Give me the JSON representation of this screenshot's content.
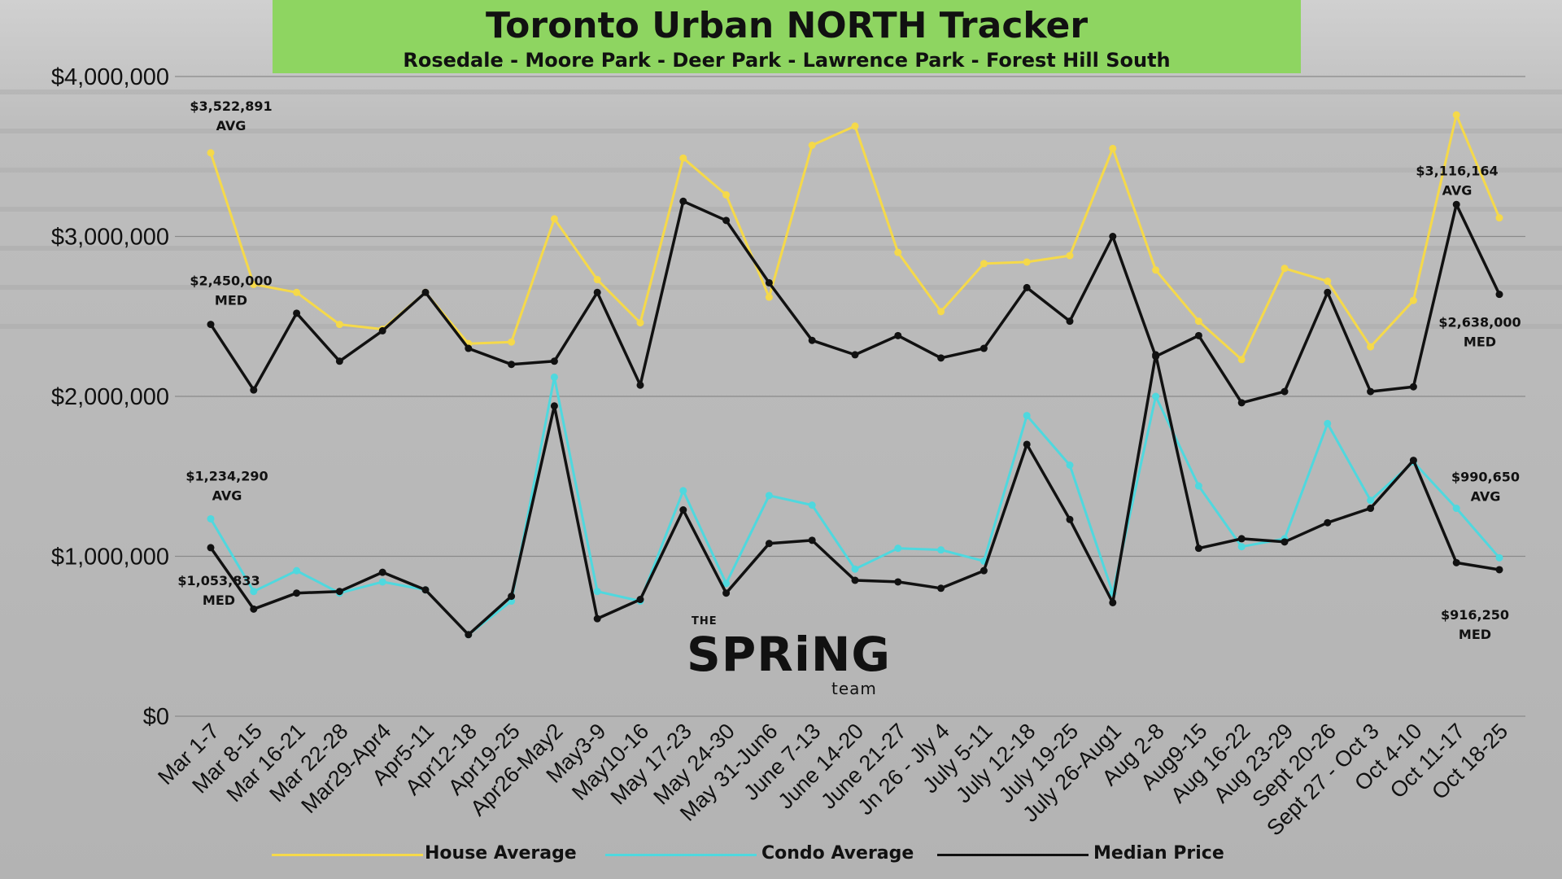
{
  "header": {
    "title": "Toronto Urban NORTH Tracker",
    "subtitle": "Rosedale - Moore Park - Deer Park - Lawrence Park - Forest Hill South"
  },
  "logo": {
    "the": "THE",
    "main": "SPRiNG",
    "team": "team"
  },
  "colors": {
    "title_bg": "#8ed561",
    "house": "#f5d94a",
    "condo": "#4fd8de",
    "median": "#111111",
    "grid": "#8a8a8a"
  },
  "chart_data": {
    "type": "line",
    "title": "Toronto Urban NORTH Tracker",
    "subtitle": "Rosedale - Moore Park - Deer Park - Lawrence Park - Forest Hill South",
    "ylim": [
      0,
      4000000
    ],
    "y_ticks": [
      0,
      1000000,
      2000000,
      3000000,
      4000000
    ],
    "y_tick_labels": [
      "$0",
      "$1,000,000",
      "$2,000,000",
      "$3,000,000",
      "$4,000,000"
    ],
    "grid": true,
    "legend_position": "bottom",
    "categories": [
      "Mar 1-7",
      "Mar 8-15",
      "Mar 16-21",
      "Mar 22-28",
      "Mar29-Apr4",
      "Apr5-11",
      "Apr12-18",
      "Apr19-25",
      "Apr26-May2",
      "May3-9",
      "May10-16",
      "May 17-23",
      "May 24-30",
      "May 31-Jun6",
      "June 7-13",
      "June 14-20",
      "June 21-27",
      "Jn 26 - Jly 4",
      "July 5-11",
      "July 12-18",
      "July 19-25",
      "July 26-Aug1",
      "Aug 2-8",
      "Aug9-15",
      "Aug 16-22",
      "Aug 23-29",
      "Sept 20-26",
      "Sept 27 - Oct 3",
      "Oct 4-10",
      "Oct 11-17",
      "Oct 18-25"
    ],
    "series": [
      {
        "name": "House Average",
        "color": "#f5d94a",
        "values": [
          3522891,
          2700000,
          2650000,
          2450000,
          2420000,
          2650000,
          2330000,
          2340000,
          3110000,
          2730000,
          2460000,
          3490000,
          3260000,
          2620000,
          3570000,
          3690000,
          2900000,
          2530000,
          2830000,
          2840000,
          2880000,
          3550000,
          2790000,
          2470000,
          2230000,
          2800000,
          2720000,
          2310000,
          2600000,
          3760000,
          3116164
        ]
      },
      {
        "name": "Condo Average",
        "color": "#4fd8de",
        "values": [
          1234290,
          780000,
          910000,
          770000,
          840000,
          790000,
          510000,
          720000,
          2120000,
          780000,
          720000,
          1410000,
          830000,
          1380000,
          1320000,
          920000,
          1050000,
          1040000,
          970000,
          1880000,
          1570000,
          770000,
          2000000,
          1440000,
          1060000,
          1110000,
          1830000,
          1350000,
          1590000,
          1300000,
          990650
        ]
      },
      {
        "name": "Median Price",
        "color": "#111111",
        "values": [
          2450000,
          2040000,
          2520000,
          2220000,
          2410000,
          2650000,
          2300000,
          2200000,
          2220000,
          2650000,
          2070000,
          3220000,
          3100000,
          2710000,
          2350000,
          2260000,
          2380000,
          2240000,
          2300000,
          2680000,
          2470000,
          3000000,
          2250000,
          2380000,
          1960000,
          2030000,
          2650000,
          2030000,
          2060000,
          3200000,
          2638000
        ]
      },
      {
        "name": "Median Price",
        "color": "#111111",
        "values": [
          1053833,
          670000,
          770000,
          780000,
          900000,
          790000,
          510000,
          750000,
          1940000,
          610000,
          730000,
          1290000,
          770000,
          1080000,
          1100000,
          850000,
          840000,
          800000,
          910000,
          1700000,
          1230000,
          710000,
          2260000,
          1050000,
          1110000,
          1090000,
          1210000,
          1300000,
          1600000,
          960000,
          916250
        ]
      }
    ],
    "annotations": [
      {
        "text": "$3,522,891",
        "sub": "AVG",
        "category": "Mar 1-7",
        "value": 3522891,
        "series": "House Average"
      },
      {
        "text": "$2,450,000",
        "sub": "MED",
        "category": "Mar 1-7",
        "value": 2450000,
        "series": "Median Price"
      },
      {
        "text": "$1,234,290",
        "sub": "AVG",
        "category": "Mar 1-7",
        "value": 1234290,
        "series": "Condo Average"
      },
      {
        "text": "$1,053,833",
        "sub": "MED",
        "category": "Mar 1-7",
        "value": 1053833,
        "series": "Median Price"
      },
      {
        "text": "$3,116,164",
        "sub": "AVG",
        "category": "Oct 18-25",
        "value": 3116164,
        "series": "House Average"
      },
      {
        "text": "$2,638,000",
        "sub": "MED",
        "category": "Oct 18-25",
        "value": 2638000,
        "series": "Median Price"
      },
      {
        "text": "$990,650",
        "sub": "AVG",
        "category": "Oct 18-25",
        "value": 990650,
        "series": "Condo Average"
      },
      {
        "text": "$916,250",
        "sub": "MED",
        "category": "Oct 18-25",
        "value": 916250,
        "series": "Median Price"
      }
    ]
  },
  "legend": [
    {
      "label": "House Average",
      "color": "#f5d94a"
    },
    {
      "label": "Condo Average",
      "color": "#4fd8de"
    },
    {
      "label": "Median Price",
      "color": "#111111"
    }
  ]
}
